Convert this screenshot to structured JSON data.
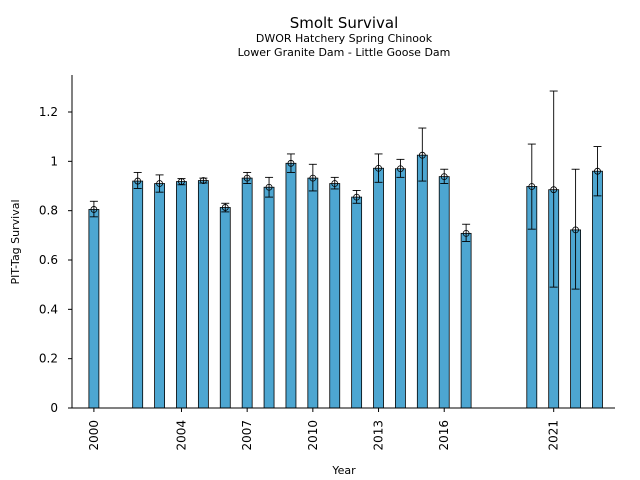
{
  "chart_data": {
    "type": "bar",
    "title": "Smolt Survival",
    "subtitle_line1": "DWOR Hatchery Spring Chinook",
    "subtitle_line2": "Lower Granite Dam - Little Goose Dam",
    "xlabel": "Year",
    "ylabel": "PIT-Tag Survival",
    "xlim": [
      1999.0,
      2023.8
    ],
    "ylim": [
      0,
      1.35
    ],
    "yticks": [
      0,
      0.2,
      0.4,
      0.6,
      0.8,
      1.0,
      1.2
    ],
    "ytick_labels": [
      "0",
      "0.2",
      "0.4",
      "0.6",
      "0.8",
      "1",
      "1.2"
    ],
    "xticks": [
      2000,
      2004,
      2007,
      2010,
      2013,
      2016,
      2021
    ],
    "xtick_labels": [
      "2000",
      "2004",
      "2007",
      "2010",
      "2013",
      "2016",
      "2021"
    ],
    "bar_color": "#4da6d1",
    "series": [
      {
        "values": [
          {
            "x": 2000,
            "y": 0.805,
            "lo": 0.775,
            "hi": 0.838
          },
          {
            "x": 2002,
            "y": 0.92,
            "lo": 0.89,
            "hi": 0.955
          },
          {
            "x": 2003,
            "y": 0.91,
            "lo": 0.875,
            "hi": 0.945
          },
          {
            "x": 2004,
            "y": 0.918,
            "lo": 0.905,
            "hi": 0.93
          },
          {
            "x": 2005,
            "y": 0.922,
            "lo": 0.912,
            "hi": 0.932
          },
          {
            "x": 2006,
            "y": 0.813,
            "lo": 0.795,
            "hi": 0.83
          },
          {
            "x": 2007,
            "y": 0.932,
            "lo": 0.91,
            "hi": 0.955
          },
          {
            "x": 2008,
            "y": 0.895,
            "lo": 0.855,
            "hi": 0.935
          },
          {
            "x": 2009,
            "y": 0.992,
            "lo": 0.955,
            "hi": 1.03
          },
          {
            "x": 2010,
            "y": 0.932,
            "lo": 0.88,
            "hi": 0.988
          },
          {
            "x": 2011,
            "y": 0.91,
            "lo": 0.888,
            "hi": 0.935
          },
          {
            "x": 2012,
            "y": 0.855,
            "lo": 0.83,
            "hi": 0.882
          },
          {
            "x": 2013,
            "y": 0.972,
            "lo": 0.915,
            "hi": 1.03
          },
          {
            "x": 2014,
            "y": 0.97,
            "lo": 0.935,
            "hi": 1.008
          },
          {
            "x": 2015,
            "y": 1.025,
            "lo": 0.92,
            "hi": 1.135
          },
          {
            "x": 2016,
            "y": 0.938,
            "lo": 0.91,
            "hi": 0.968
          },
          {
            "x": 2017,
            "y": 0.708,
            "lo": 0.675,
            "hi": 0.745
          },
          {
            "x": 2020,
            "y": 0.898,
            "lo": 0.725,
            "hi": 1.07
          },
          {
            "x": 2021,
            "y": 0.885,
            "lo": 0.49,
            "hi": 1.285
          },
          {
            "x": 2022,
            "y": 0.722,
            "lo": 0.482,
            "hi": 0.968
          },
          {
            "x": 2023,
            "y": 0.96,
            "lo": 0.86,
            "hi": 1.06
          }
        ]
      }
    ],
    "grid": false,
    "legend": "none"
  }
}
